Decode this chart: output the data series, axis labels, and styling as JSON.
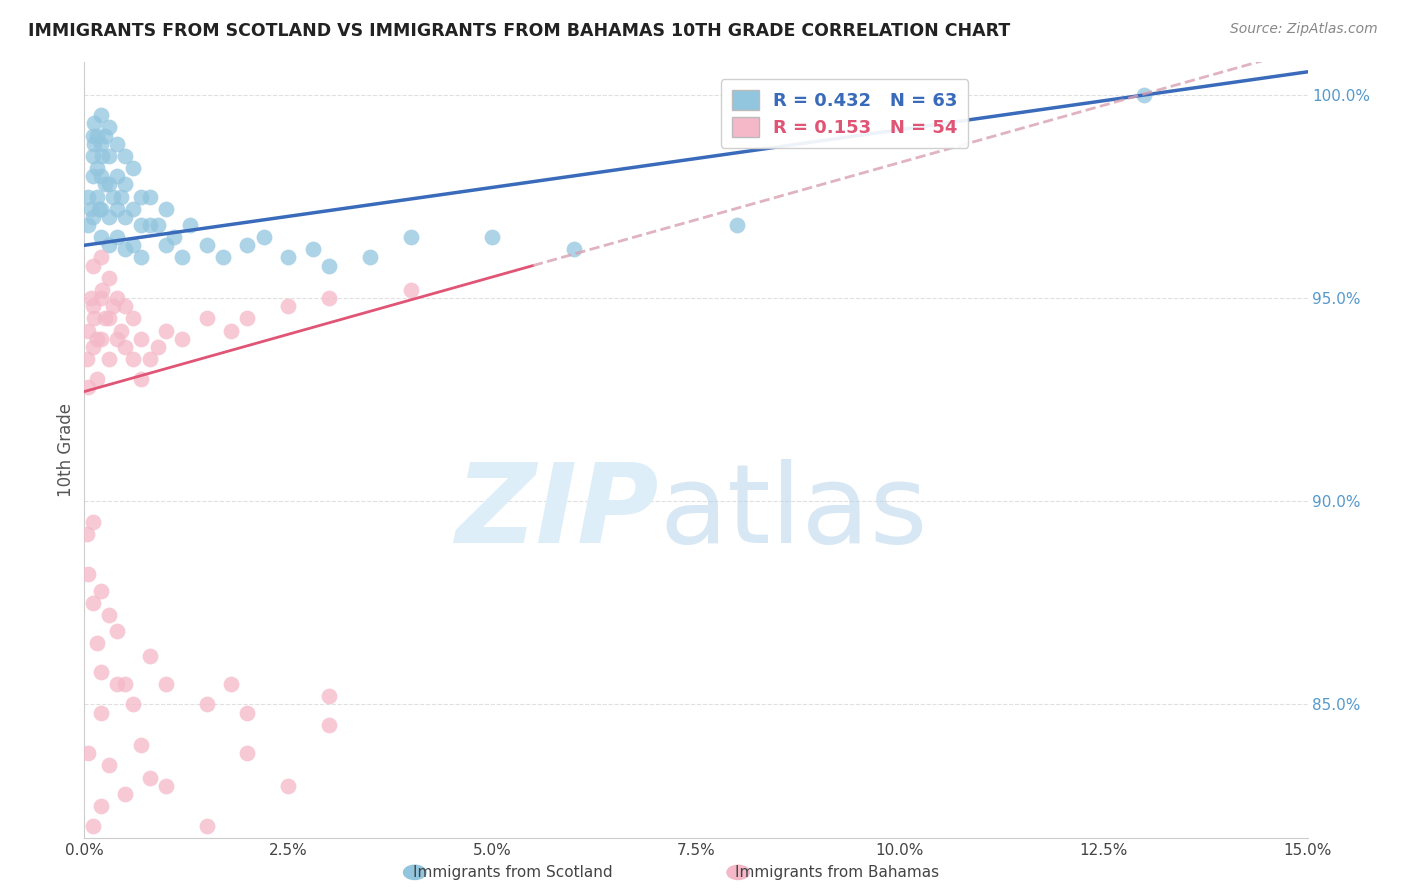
{
  "title": "IMMIGRANTS FROM SCOTLAND VS IMMIGRANTS FROM BAHAMAS 10TH GRADE CORRELATION CHART",
  "source": "Source: ZipAtlas.com",
  "ylabel": "10th Grade",
  "legend_scotland": "Immigrants from Scotland",
  "legend_bahamas": "Immigrants from Bahamas",
  "R_scotland": 0.432,
  "N_scotland": 63,
  "R_bahamas": 0.153,
  "N_bahamas": 54,
  "color_scotland": "#92c5de",
  "color_bahamas": "#f4b8c8",
  "trendline_scotland_color": "#3a6bba",
  "trendline_bahamas_color": "#e05575",
  "trendline_bahamas_dashed_color": "#d8a0b0",
  "background_color": "#ffffff",
  "xmin": 0.0,
  "xmax": 0.15,
  "ymin": 0.817,
  "ymax": 1.008,
  "scotland_x": [
    0.0005,
    0.0005,
    0.0008,
    0.001,
    0.001,
    0.001,
    0.001,
    0.0012,
    0.0012,
    0.0015,
    0.0015,
    0.0015,
    0.0018,
    0.002,
    0.002,
    0.002,
    0.002,
    0.002,
    0.0022,
    0.0025,
    0.0025,
    0.003,
    0.003,
    0.003,
    0.003,
    0.003,
    0.0035,
    0.004,
    0.004,
    0.004,
    0.004,
    0.0045,
    0.005,
    0.005,
    0.005,
    0.005,
    0.006,
    0.006,
    0.006,
    0.007,
    0.007,
    0.007,
    0.008,
    0.008,
    0.009,
    0.01,
    0.01,
    0.011,
    0.012,
    0.013,
    0.015,
    0.017,
    0.02,
    0.022,
    0.025,
    0.028,
    0.03,
    0.035,
    0.04,
    0.05,
    0.06,
    0.08,
    0.13
  ],
  "scotland_y": [
    0.975,
    0.968,
    0.972,
    0.99,
    0.985,
    0.98,
    0.97,
    0.993,
    0.988,
    0.99,
    0.982,
    0.975,
    0.972,
    0.995,
    0.988,
    0.98,
    0.972,
    0.965,
    0.985,
    0.99,
    0.978,
    0.992,
    0.985,
    0.978,
    0.97,
    0.963,
    0.975,
    0.988,
    0.98,
    0.972,
    0.965,
    0.975,
    0.985,
    0.978,
    0.97,
    0.962,
    0.982,
    0.972,
    0.963,
    0.975,
    0.968,
    0.96,
    0.975,
    0.968,
    0.968,
    0.972,
    0.963,
    0.965,
    0.96,
    0.968,
    0.963,
    0.96,
    0.963,
    0.965,
    0.96,
    0.962,
    0.958,
    0.96,
    0.965,
    0.965,
    0.962,
    0.968,
    1.0
  ],
  "bahamas_x": [
    0.0003,
    0.0005,
    0.0005,
    0.0008,
    0.001,
    0.001,
    0.001,
    0.0012,
    0.0015,
    0.0015,
    0.002,
    0.002,
    0.002,
    0.0022,
    0.0025,
    0.003,
    0.003,
    0.003,
    0.0035,
    0.004,
    0.004,
    0.0045,
    0.005,
    0.005,
    0.006,
    0.006,
    0.007,
    0.007,
    0.008,
    0.009,
    0.01,
    0.012,
    0.015,
    0.018,
    0.02,
    0.025,
    0.03,
    0.04,
    0.0003,
    0.0005,
    0.001,
    0.001,
    0.0015,
    0.002,
    0.002,
    0.003,
    0.004,
    0.005,
    0.006,
    0.008,
    0.01,
    0.015,
    0.02,
    0.03
  ],
  "bahamas_y": [
    0.935,
    0.942,
    0.928,
    0.95,
    0.958,
    0.948,
    0.938,
    0.945,
    0.94,
    0.93,
    0.96,
    0.95,
    0.94,
    0.952,
    0.945,
    0.955,
    0.945,
    0.935,
    0.948,
    0.95,
    0.94,
    0.942,
    0.948,
    0.938,
    0.945,
    0.935,
    0.94,
    0.93,
    0.935,
    0.938,
    0.942,
    0.94,
    0.945,
    0.942,
    0.945,
    0.948,
    0.95,
    0.952,
    0.892,
    0.882,
    0.895,
    0.875,
    0.865,
    0.878,
    0.858,
    0.872,
    0.868,
    0.855,
    0.85,
    0.862,
    0.855,
    0.85,
    0.848,
    0.852
  ],
  "bahamas_low_x": [
    0.0005,
    0.001,
    0.002,
    0.002,
    0.003,
    0.004,
    0.005,
    0.007,
    0.008,
    0.01,
    0.015,
    0.018,
    0.02,
    0.025,
    0.03
  ],
  "bahamas_low_y": [
    0.838,
    0.82,
    0.848,
    0.825,
    0.835,
    0.855,
    0.828,
    0.84,
    0.832,
    0.83,
    0.82,
    0.855,
    0.838,
    0.83,
    0.845
  ]
}
